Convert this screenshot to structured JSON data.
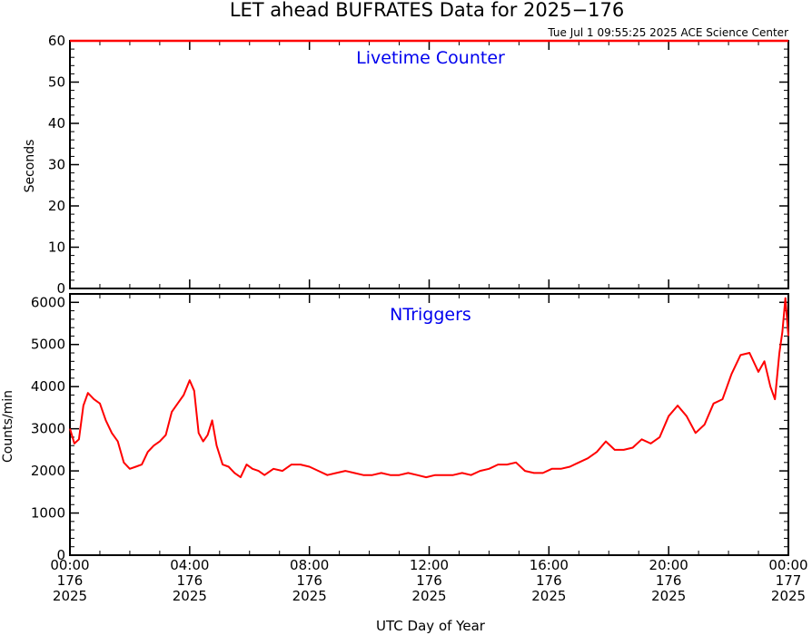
{
  "title": "LET ahead BUFRATES Data for 2025−176",
  "timestamp": "Tue Jul  1 09:55:25 2025 ACE Science Center",
  "xlabel": "UTC Day of Year",
  "x_ticks": [
    {
      "time": "00:00",
      "doy": "176",
      "year": "2025"
    },
    {
      "time": "04:00",
      "doy": "176",
      "year": "2025"
    },
    {
      "time": "08:00",
      "doy": "176",
      "year": "2025"
    },
    {
      "time": "12:00",
      "doy": "176",
      "year": "2025"
    },
    {
      "time": "16:00",
      "doy": "176",
      "year": "2025"
    },
    {
      "time": "20:00",
      "doy": "176",
      "year": "2025"
    },
    {
      "time": "00:00",
      "doy": "177",
      "year": "2025"
    }
  ],
  "colors": {
    "series": "#ff0000",
    "panel_label": "#0000ee",
    "axes": "#000000"
  },
  "chart_data": [
    {
      "type": "line",
      "panel_label": "Livetime Counter",
      "ylabel": "Seconds",
      "xlim": [
        0,
        24
      ],
      "ylim": [
        0,
        60
      ],
      "y_ticks": [
        0,
        10,
        20,
        30,
        40,
        50,
        60
      ],
      "x_unit": "hours UTC",
      "x": [
        0,
        24
      ],
      "y": [
        60,
        60
      ]
    },
    {
      "type": "line",
      "panel_label": "NTriggers",
      "ylabel": "Counts/min",
      "xlim": [
        0,
        24
      ],
      "ylim": [
        0,
        6200
      ],
      "y_ticks": [
        0,
        1000,
        2000,
        3000,
        4000,
        5000,
        6000
      ],
      "x_unit": "hours UTC",
      "x": [
        0,
        0.15,
        0.3,
        0.45,
        0.6,
        0.8,
        1.0,
        1.2,
        1.4,
        1.6,
        1.8,
        2.0,
        2.2,
        2.4,
        2.6,
        2.8,
        3.0,
        3.2,
        3.4,
        3.6,
        3.8,
        4.0,
        4.15,
        4.3,
        4.45,
        4.6,
        4.75,
        4.9,
        5.1,
        5.3,
        5.5,
        5.7,
        5.9,
        6.1,
        6.3,
        6.5,
        6.8,
        7.1,
        7.4,
        7.7,
        8.0,
        8.3,
        8.6,
        8.9,
        9.2,
        9.5,
        9.8,
        10.1,
        10.4,
        10.7,
        11.0,
        11.3,
        11.6,
        11.9,
        12.2,
        12.5,
        12.8,
        13.1,
        13.4,
        13.7,
        14.0,
        14.3,
        14.6,
        14.9,
        15.2,
        15.5,
        15.8,
        16.1,
        16.4,
        16.7,
        17.0,
        17.3,
        17.6,
        17.9,
        18.2,
        18.5,
        18.8,
        19.1,
        19.4,
        19.7,
        20.0,
        20.3,
        20.6,
        20.9,
        21.2,
        21.5,
        21.8,
        22.1,
        22.4,
        22.7,
        23.0,
        23.2,
        23.4,
        23.55,
        23.7,
        23.8,
        23.9,
        24.0
      ],
      "y": [
        3000,
        2650,
        2750,
        3550,
        3850,
        3700,
        3600,
        3200,
        2900,
        2700,
        2200,
        2050,
        2100,
        2150,
        2450,
        2600,
        2700,
        2850,
        3400,
        3600,
        3800,
        4150,
        3900,
        2900,
        2700,
        2850,
        3200,
        2600,
        2150,
        2100,
        1950,
        1850,
        2150,
        2050,
        2000,
        1900,
        2050,
        2000,
        2150,
        2150,
        2100,
        2000,
        1900,
        1950,
        2000,
        1950,
        1900,
        1900,
        1950,
        1900,
        1900,
        1950,
        1900,
        1850,
        1900,
        1900,
        1900,
        1950,
        1900,
        2000,
        2050,
        2150,
        2150,
        2200,
        2000,
        1950,
        1950,
        2050,
        2050,
        2100,
        2200,
        2300,
        2450,
        2700,
        2500,
        2500,
        2550,
        2750,
        2650,
        2800,
        3300,
        3550,
        3300,
        2900,
        3100,
        3600,
        3700,
        4300,
        4750,
        4800,
        4350,
        4600,
        4000,
        3700,
        4800,
        5300,
        6100,
        5200
      ]
    }
  ]
}
